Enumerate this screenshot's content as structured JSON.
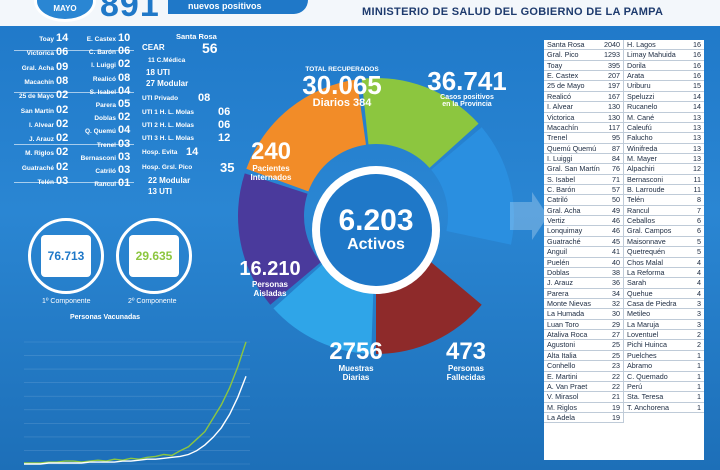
{
  "header": {
    "date_label": "MAYO",
    "big_count": "891",
    "count_label": "nuevos positivos",
    "ministry": "MINISTERIO DE SALUD DEL GOBIERNO DE LA PAMPA"
  },
  "localities_left": [
    {
      "name": "Toay",
      "value": "14"
    },
    {
      "name": "Victorica",
      "value": "06"
    },
    {
      "name": "Gral. Acha",
      "value": "09"
    },
    {
      "name": "Macachín",
      "value": "08"
    },
    {
      "name": "25 de Mayo",
      "value": "02"
    },
    {
      "name": "San Martín",
      "value": "02"
    },
    {
      "name": "I. Alvear",
      "value": "02"
    },
    {
      "name": "J. Arauz",
      "value": "02"
    },
    {
      "name": "M. Riglos",
      "value": "02"
    },
    {
      "name": "Guatraché",
      "value": "02"
    },
    {
      "name": "Telén",
      "value": "03"
    }
  ],
  "localities_mid": [
    {
      "name": "E. Castex",
      "value": "10"
    },
    {
      "name": "C. Barón",
      "value": "06"
    },
    {
      "name": "I. Luiggi",
      "value": "02"
    },
    {
      "name": "Realicó",
      "value": "08"
    },
    {
      "name": "S. Isabel",
      "value": "04"
    },
    {
      "name": "Parera",
      "value": "05"
    },
    {
      "name": "Doblas",
      "value": "02"
    },
    {
      "name": "Q. Quemú",
      "value": "04"
    },
    {
      "name": "Trenel",
      "value": "03"
    },
    {
      "name": "Bernasconi",
      "value": "03"
    },
    {
      "name": "Catriló",
      "value": "03"
    },
    {
      "name": "Rancul",
      "value": "01"
    }
  ],
  "hospital_block": {
    "santa_rosa": "Santa Rosa",
    "cear": "CEAR",
    "cear_value": "56",
    "cmedica": "11 C.Médica",
    "uti": "18 UTI",
    "modular": "27 Modular",
    "uti_privado": "UTI Privado",
    "uti_privado_value": "08",
    "molas1": "UTI 1 H. L. Molas",
    "molas1_value": "06",
    "molas2": "UTI 2 H. L. Molas",
    "molas2_value": "06",
    "molas3": "UTI 3 H. L. Molas",
    "molas3_value": "12",
    "evita": "Hosp. Evita",
    "evita_value": "14",
    "pico": "Hosp. Grsl. Pico",
    "pico_value": "35",
    "pico_modular": "22 Modular",
    "pico_uti": "13 UTI"
  },
  "vaccination": {
    "first_value": "76.713",
    "first_label": "1º Componente",
    "second_value": "29.635",
    "second_label": "2º Componente",
    "title": "Personas Vacunadas",
    "first_color": "#1f78c8",
    "second_color": "#8cc63f"
  },
  "ring": {
    "recuperados_title": "TOTAL RECUPERADOS",
    "recuperados_value": "30.065",
    "recuperados_daily_label": "Diarios",
    "recuperados_daily_value": "384",
    "positivos_value": "36.741",
    "positivos_label_1": "Casos positivos",
    "positivos_label_2": "en la Provincia",
    "internados_value": "240",
    "internados_label_1": "Pacientes",
    "internados_label_2": "Internados",
    "aisladas_value": "16.210",
    "aisladas_label_1": "Personas",
    "aisladas_label_2": "Aisladas",
    "muestras_value": "2756",
    "muestras_label_1": "Muestras",
    "muestras_label_2": "Diarias",
    "fallecidas_value": "473",
    "fallecidas_label_1": "Personas",
    "fallecidas_label_2": "Fallecidas",
    "activos_value": "6.203",
    "activos_label": "Activos",
    "colors": {
      "recuperados": "#8cc63f",
      "positivos": "#2a8fe0",
      "internados": "#f28c28",
      "aisladas": "#4a3a9c",
      "muestras": "#2fa5e8",
      "fallecidas": "#8e2a2a"
    }
  },
  "right_table": {
    "col1": [
      [
        "Santa Rosa",
        "2040"
      ],
      [
        "Gral. Pico",
        "1293"
      ],
      [
        "Toay",
        "395"
      ],
      [
        "E. Castex",
        "207"
      ],
      [
        "25 de Mayo",
        "197"
      ],
      [
        "Realicó",
        "167"
      ],
      [
        "I. Alvear",
        "130"
      ],
      [
        "Victorica",
        "130"
      ],
      [
        "Macachín",
        "117"
      ],
      [
        "Trenel",
        "95"
      ],
      [
        "Quemú Quemú",
        "87"
      ],
      [
        "I. Luiggi",
        "84"
      ],
      [
        "Gral. San Martín",
        "76"
      ],
      [
        "S. Isabel",
        "71"
      ],
      [
        "C. Barón",
        "57"
      ],
      [
        "Catriló",
        "50"
      ],
      [
        "Gral. Acha",
        "49"
      ],
      [
        "Vertiz",
        "46"
      ],
      [
        "Lonquimay",
        "46"
      ],
      [
        "Guatraché",
        "45"
      ],
      [
        "Anguil",
        "41"
      ],
      [
        "Puelén",
        "40"
      ],
      [
        "Doblas",
        "38"
      ],
      [
        "J. Arauz",
        "36"
      ],
      [
        "Parera",
        "34"
      ],
      [
        "Monte Nievas",
        "32"
      ],
      [
        "La Humada",
        "30"
      ],
      [
        "Luan Toro",
        "29"
      ],
      [
        "Ataliva Roca",
        "27"
      ],
      [
        "Agustoni",
        "25"
      ],
      [
        "Alta Italia",
        "25"
      ],
      [
        "Conhello",
        "23"
      ],
      [
        "E. Martini",
        "22"
      ],
      [
        "A. Van Praet",
        "22"
      ],
      [
        "V. Mirasol",
        "21"
      ],
      [
        "M. Riglos",
        "19"
      ],
      [
        "La Adela",
        "19"
      ]
    ],
    "col2": [
      [
        "H. Lagos",
        "16"
      ],
      [
        "Limay Mahuida",
        "16"
      ],
      [
        "Dorila",
        "16"
      ],
      [
        "Arata",
        "16"
      ],
      [
        "Uriburu",
        "15"
      ],
      [
        "Speluzzi",
        "14"
      ],
      [
        "Rucanelo",
        "14"
      ],
      [
        "M. Cané",
        "13"
      ],
      [
        "Caleufú",
        "13"
      ],
      [
        "Falucho",
        "13"
      ],
      [
        "Winifreda",
        "13"
      ],
      [
        "M. Mayer",
        "13"
      ],
      [
        "Alpachiri",
        "12"
      ],
      [
        "Bernasconi",
        "11"
      ],
      [
        "B. Larroude",
        "11"
      ],
      [
        "Telén",
        "8"
      ],
      [
        "Rancul",
        "7"
      ],
      [
        "Ceballos",
        "6"
      ],
      [
        "Gral. Campos",
        "6"
      ],
      [
        "Maisonnave",
        "5"
      ],
      [
        "Quetrequén",
        "5"
      ],
      [
        "Chos Malal",
        "4"
      ],
      [
        "La Reforma",
        "4"
      ],
      [
        "Sarah",
        "4"
      ],
      [
        "Quehue",
        "4"
      ],
      [
        "Casa de Piedra",
        "3"
      ],
      [
        "Metileo",
        "3"
      ],
      [
        "La Maruja",
        "3"
      ],
      [
        "Loventuel",
        "2"
      ],
      [
        "Pichi Huinca",
        "2"
      ],
      [
        "Puelches",
        "1"
      ],
      [
        "Abramo",
        "1"
      ],
      [
        "C. Quemado",
        "1"
      ],
      [
        "Perú",
        "1"
      ],
      [
        "Sta. Teresa",
        "1"
      ],
      [
        "T. Anchorena",
        "1"
      ]
    ]
  },
  "chart_data": {
    "type": "line",
    "title": "",
    "series": [
      {
        "values": [
          1,
          1,
          1,
          2,
          2,
          3,
          3,
          2,
          3,
          4,
          3,
          5,
          4,
          6,
          5,
          7,
          8,
          10,
          9,
          14,
          18,
          26,
          34,
          48,
          62,
          80,
          102,
          128
        ]
      },
      {
        "values": [
          0,
          0,
          0,
          1,
          1,
          1,
          1,
          1,
          2,
          2,
          2,
          2,
          3,
          3,
          4,
          5,
          5,
          6,
          7,
          8,
          10,
          14,
          20,
          28,
          38,
          52,
          70,
          92
        ]
      }
    ],
    "colors": [
      "#8cc63f",
      "#ffffff"
    ],
    "grid": true
  }
}
